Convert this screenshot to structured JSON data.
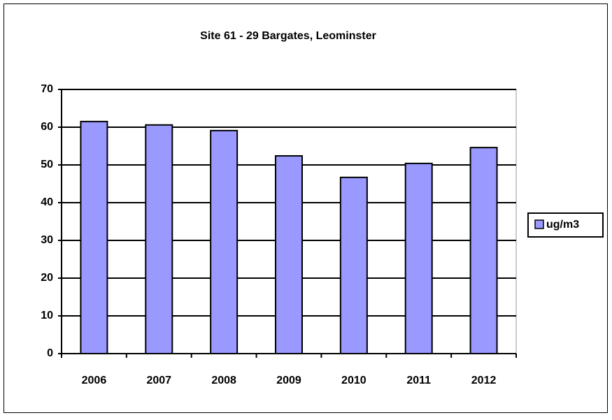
{
  "chart_data": {
    "type": "bar",
    "title": "Site 61 - 29 Bargates, Leominster",
    "categories": [
      "2006",
      "2007",
      "2008",
      "2009",
      "2010",
      "2011",
      "2012"
    ],
    "series": [
      {
        "name": "ug/m3",
        "color": "#9999ff",
        "values": [
          61.5,
          60.6,
          59.1,
          52.4,
          46.7,
          50.4,
          54.6
        ]
      }
    ],
    "ylim": [
      0,
      70
    ],
    "yticks": [
      0,
      10,
      20,
      30,
      40,
      50,
      60,
      70
    ],
    "grid": true,
    "legend": "right"
  }
}
